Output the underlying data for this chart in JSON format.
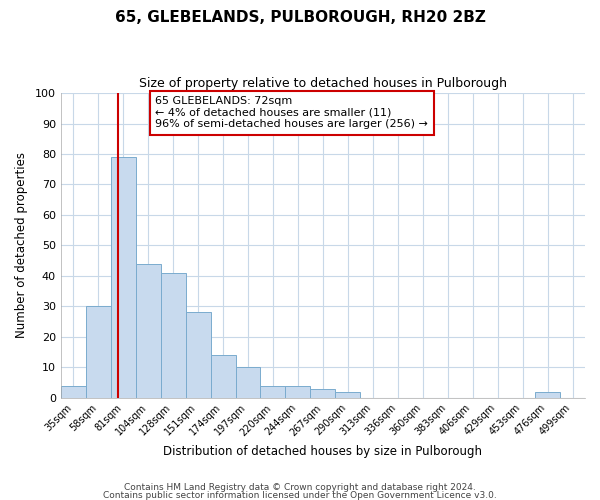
{
  "title": "65, GLEBELANDS, PULBOROUGH, RH20 2BZ",
  "subtitle": "Size of property relative to detached houses in Pulborough",
  "xlabel": "Distribution of detached houses by size in Pulborough",
  "ylabel": "Number of detached properties",
  "bar_color": "#c8daee",
  "bar_edge_color": "#7aabce",
  "marker_color": "#cc0000",
  "background_color": "#ffffff",
  "grid_color": "#c8d8e8",
  "bin_labels": [
    "35sqm",
    "58sqm",
    "81sqm",
    "104sqm",
    "128sqm",
    "151sqm",
    "174sqm",
    "197sqm",
    "220sqm",
    "244sqm",
    "267sqm",
    "290sqm",
    "313sqm",
    "336sqm",
    "360sqm",
    "383sqm",
    "406sqm",
    "429sqm",
    "453sqm",
    "476sqm",
    "499sqm"
  ],
  "bar_heights": [
    4,
    30,
    79,
    44,
    41,
    28,
    14,
    10,
    4,
    4,
    3,
    2,
    0,
    0,
    0,
    0,
    0,
    0,
    0,
    2,
    0
  ],
  "marker_bin_index": 1.78,
  "ylim": [
    0,
    100
  ],
  "yticks": [
    0,
    10,
    20,
    30,
    40,
    50,
    60,
    70,
    80,
    90,
    100
  ],
  "annotation_title": "65 GLEBELANDS: 72sqm",
  "annotation_line1": "← 4% of detached houses are smaller (11)",
  "annotation_line2": "96% of semi-detached houses are larger (256) →",
  "annotation_box_color": "#ffffff",
  "annotation_box_edge": "#cc0000",
  "footer_line1": "Contains HM Land Registry data © Crown copyright and database right 2024.",
  "footer_line2": "Contains public sector information licensed under the Open Government Licence v3.0."
}
